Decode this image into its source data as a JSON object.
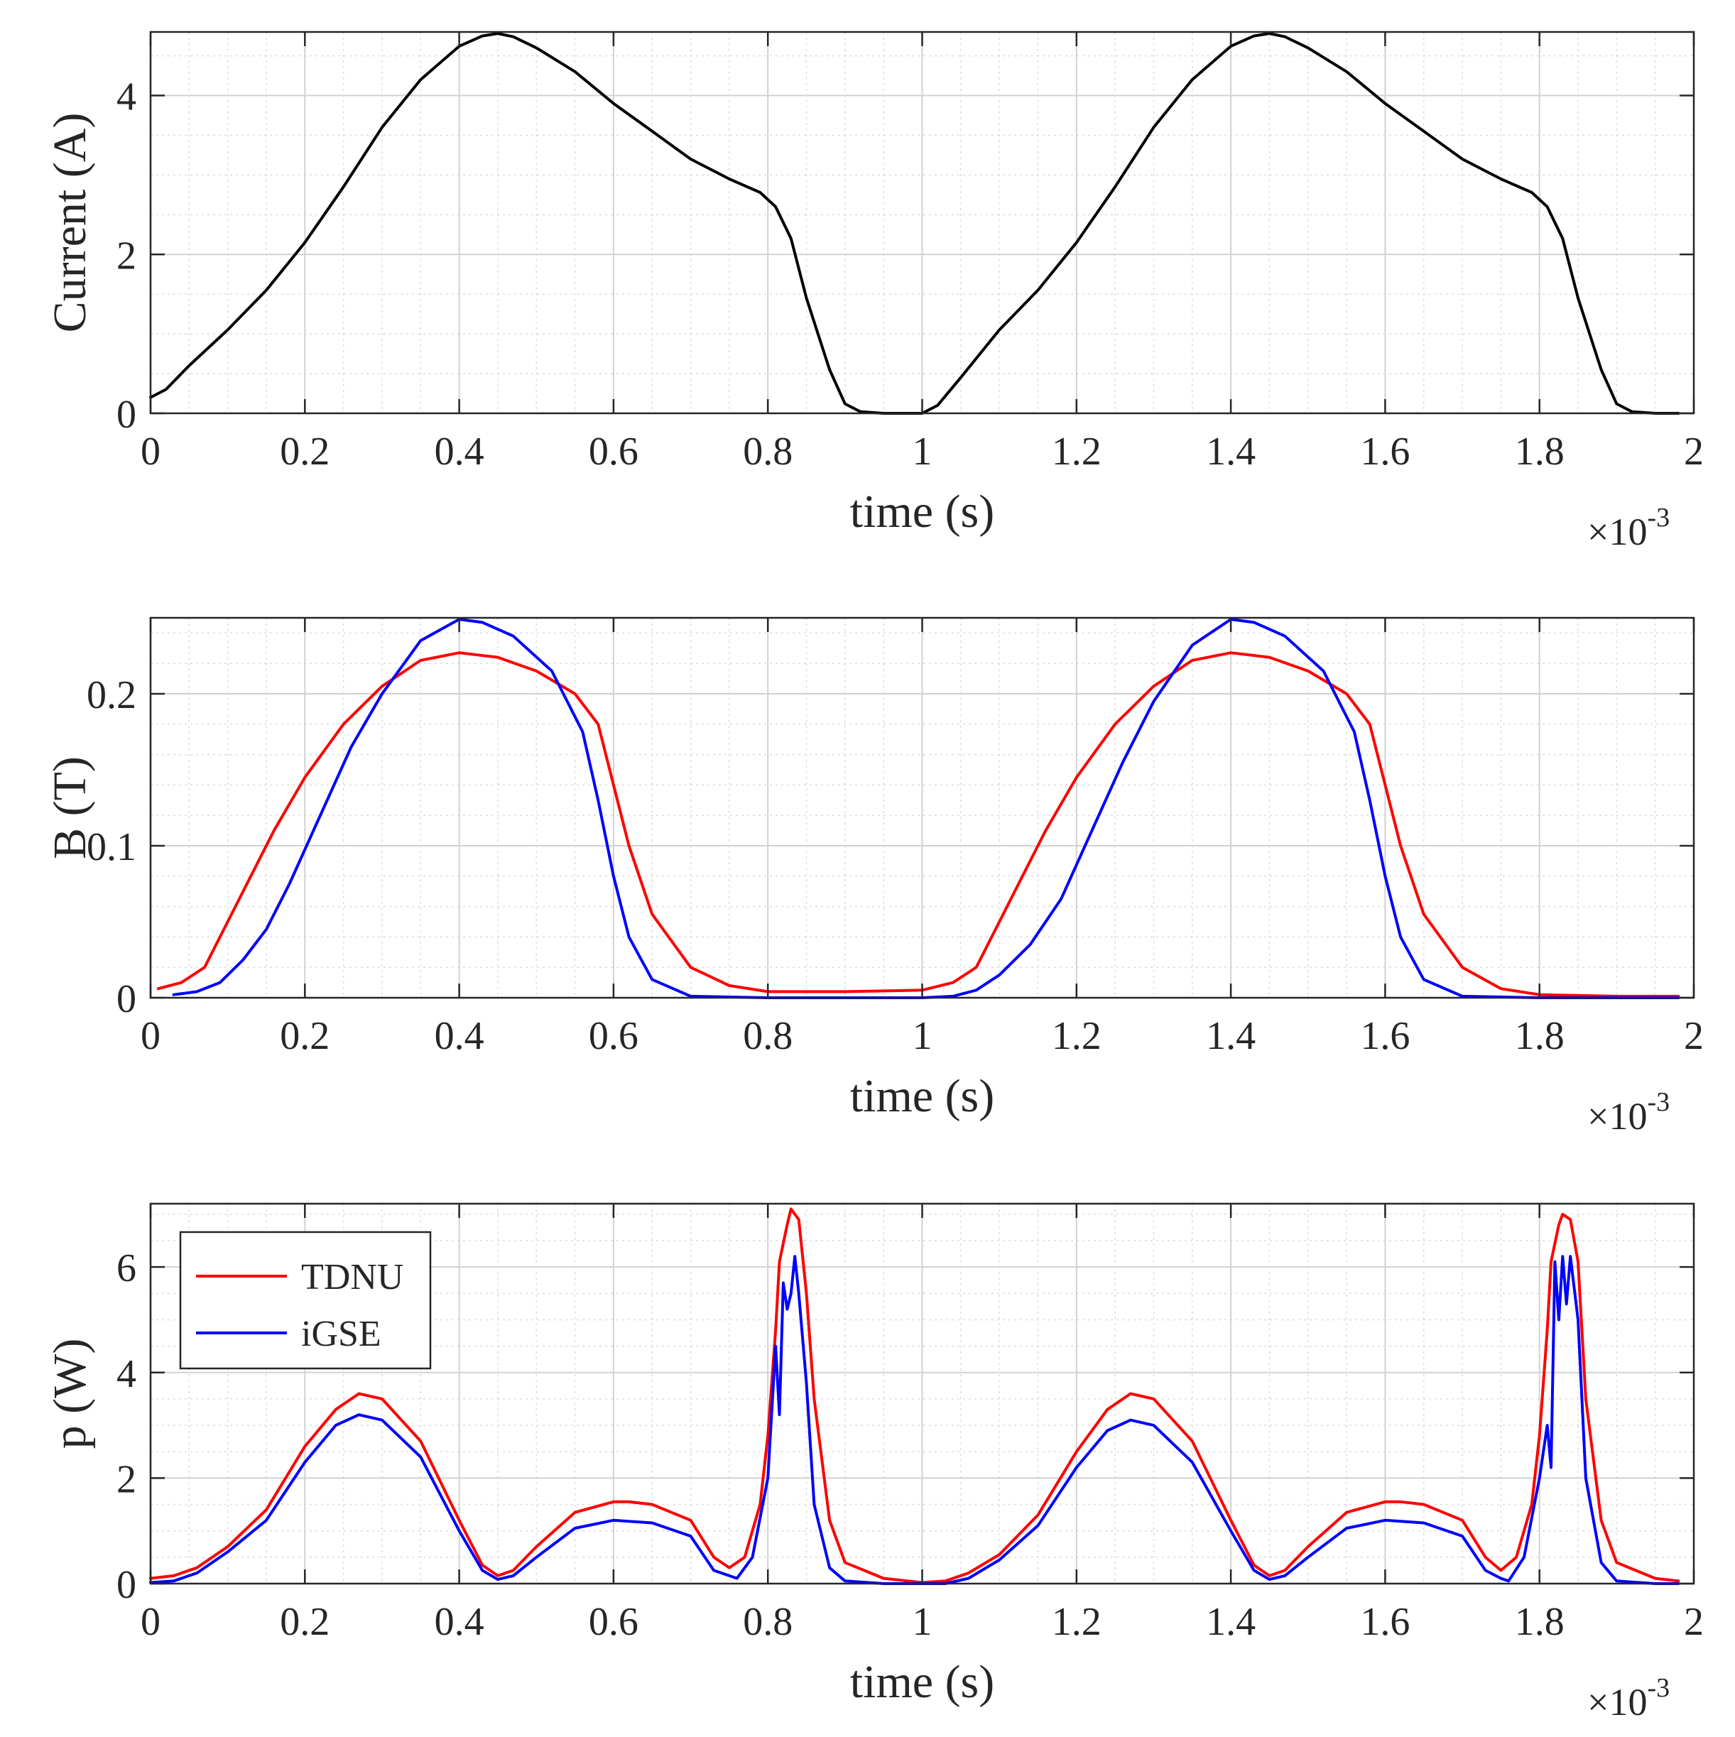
{
  "chart_data": [
    {
      "type": "line",
      "ylabel": "Current (A)",
      "xlabel": "time (s)",
      "x_exponent_label": "×10-3",
      "xlim": [
        0,
        2
      ],
      "ylim": [
        0,
        4.8
      ],
      "xticks": [
        0,
        0.2,
        0.4,
        0.6,
        0.8,
        1,
        1.2,
        1.4,
        1.6,
        1.8,
        2
      ],
      "xtick_labels": [
        "0",
        "0.2",
        "0.4",
        "0.6",
        "0.8",
        "1",
        "1.2",
        "1.4",
        "1.6",
        "1.8",
        "2"
      ],
      "yticks": [
        0,
        2,
        4
      ],
      "ytick_labels": [
        "0",
        "2",
        "4"
      ],
      "grid": true,
      "series": [
        {
          "name": "Current",
          "color": "#000000",
          "x": [
            0,
            0.02,
            0.05,
            0.1,
            0.15,
            0.2,
            0.25,
            0.3,
            0.35,
            0.4,
            0.43,
            0.45,
            0.47,
            0.5,
            0.55,
            0.6,
            0.65,
            0.7,
            0.75,
            0.79,
            0.81,
            0.83,
            0.85,
            0.88,
            0.9,
            0.92,
            0.95,
            0.98,
            1.0,
            1.02,
            1.05,
            1.1,
            1.15,
            1.2,
            1.25,
            1.3,
            1.35,
            1.4,
            1.43,
            1.45,
            1.47,
            1.5,
            1.55,
            1.6,
            1.65,
            1.7,
            1.75,
            1.79,
            1.81,
            1.83,
            1.85,
            1.88,
            1.9,
            1.92,
            1.95,
            1.98
          ],
          "y": [
            0.2,
            0.3,
            0.6,
            1.05,
            1.55,
            2.15,
            2.85,
            3.6,
            4.2,
            4.62,
            4.75,
            4.78,
            4.74,
            4.6,
            4.3,
            3.9,
            3.55,
            3.2,
            2.95,
            2.78,
            2.6,
            2.2,
            1.45,
            0.55,
            0.12,
            0.02,
            0,
            0,
            0,
            0.1,
            0.45,
            1.05,
            1.55,
            2.15,
            2.85,
            3.6,
            4.2,
            4.62,
            4.75,
            4.78,
            4.74,
            4.6,
            4.3,
            3.9,
            3.55,
            3.2,
            2.95,
            2.78,
            2.6,
            2.2,
            1.45,
            0.55,
            0.12,
            0.02,
            0,
            0
          ]
        }
      ]
    },
    {
      "type": "line",
      "ylabel": "B (T)",
      "xlabel": "time (s)",
      "x_exponent_label": "×10-3",
      "xlim": [
        0,
        2
      ],
      "ylim": [
        0,
        0.25
      ],
      "xticks": [
        0,
        0.2,
        0.4,
        0.6,
        0.8,
        1,
        1.2,
        1.4,
        1.6,
        1.8,
        2
      ],
      "xtick_labels": [
        "0",
        "0.2",
        "0.4",
        "0.6",
        "0.8",
        "1",
        "1.2",
        "1.4",
        "1.6",
        "1.8",
        "2"
      ],
      "yticks": [
        0,
        0.1,
        0.2
      ],
      "ytick_labels": [
        "0",
        "0.1",
        "0.2"
      ],
      "grid": true,
      "series": [
        {
          "name": "TDNU",
          "color": "#ff0000",
          "x": [
            0.01,
            0.04,
            0.07,
            0.1,
            0.13,
            0.16,
            0.2,
            0.25,
            0.3,
            0.35,
            0.4,
            0.45,
            0.5,
            0.55,
            0.58,
            0.6,
            0.62,
            0.65,
            0.7,
            0.75,
            0.8,
            0.9,
            1.0,
            1.04,
            1.07,
            1.1,
            1.13,
            1.16,
            1.2,
            1.25,
            1.3,
            1.35,
            1.4,
            1.45,
            1.5,
            1.55,
            1.58,
            1.6,
            1.62,
            1.65,
            1.7,
            1.75,
            1.8,
            1.9,
            1.98
          ],
          "y": [
            0.006,
            0.01,
            0.02,
            0.05,
            0.08,
            0.11,
            0.145,
            0.18,
            0.205,
            0.222,
            0.227,
            0.224,
            0.215,
            0.2,
            0.18,
            0.14,
            0.1,
            0.055,
            0.02,
            0.008,
            0.004,
            0.004,
            0.005,
            0.01,
            0.02,
            0.05,
            0.08,
            0.11,
            0.145,
            0.18,
            0.205,
            0.222,
            0.227,
            0.224,
            0.215,
            0.2,
            0.18,
            0.14,
            0.1,
            0.055,
            0.02,
            0.006,
            0.002,
            0.001,
            0.001
          ]
        },
        {
          "name": "iGSE",
          "color": "#0000ff",
          "x": [
            0.03,
            0.06,
            0.09,
            0.12,
            0.15,
            0.18,
            0.22,
            0.26,
            0.3,
            0.35,
            0.4,
            0.43,
            0.47,
            0.52,
            0.56,
            0.58,
            0.6,
            0.62,
            0.65,
            0.7,
            0.8,
            0.9,
            1.0,
            1.04,
            1.07,
            1.1,
            1.14,
            1.18,
            1.22,
            1.26,
            1.3,
            1.35,
            1.4,
            1.43,
            1.47,
            1.52,
            1.56,
            1.58,
            1.6,
            1.62,
            1.65,
            1.7,
            1.8,
            1.9,
            1.98
          ],
          "y": [
            0.002,
            0.004,
            0.01,
            0.025,
            0.045,
            0.075,
            0.12,
            0.165,
            0.2,
            0.235,
            0.249,
            0.247,
            0.238,
            0.215,
            0.175,
            0.13,
            0.08,
            0.04,
            0.012,
            0.001,
            0,
            0,
            0,
            0.001,
            0.005,
            0.015,
            0.035,
            0.065,
            0.11,
            0.155,
            0.195,
            0.232,
            0.249,
            0.247,
            0.238,
            0.215,
            0.175,
            0.13,
            0.08,
            0.04,
            0.012,
            0.001,
            0,
            0,
            0
          ]
        }
      ]
    },
    {
      "type": "line",
      "ylabel": "p (W)",
      "xlabel": "time (s)",
      "x_exponent_label": "×10-3",
      "xlim": [
        0,
        2
      ],
      "ylim": [
        0,
        7.2
      ],
      "xticks": [
        0,
        0.2,
        0.4,
        0.6,
        0.8,
        1,
        1.2,
        1.4,
        1.6,
        1.8,
        2
      ],
      "xtick_labels": [
        "0",
        "0.2",
        "0.4",
        "0.6",
        "0.8",
        "1",
        "1.2",
        "1.4",
        "1.6",
        "1.8",
        "2"
      ],
      "yticks": [
        0,
        2,
        4,
        6
      ],
      "ytick_labels": [
        "0",
        "2",
        "4",
        "6"
      ],
      "grid": true,
      "legend": {
        "position": "top-left",
        "entries": [
          "TDNU",
          "iGSE"
        ]
      },
      "series": [
        {
          "name": "TDNU",
          "color": "#ff0000",
          "x": [
            0,
            0.03,
            0.06,
            0.1,
            0.15,
            0.2,
            0.24,
            0.27,
            0.3,
            0.35,
            0.4,
            0.43,
            0.45,
            0.47,
            0.5,
            0.55,
            0.6,
            0.62,
            0.65,
            0.7,
            0.73,
            0.75,
            0.77,
            0.79,
            0.8,
            0.81,
            0.815,
            0.825,
            0.83,
            0.84,
            0.85,
            0.86,
            0.88,
            0.9,
            0.95,
            1.0,
            1.03,
            1.06,
            1.1,
            1.15,
            1.2,
            1.24,
            1.27,
            1.3,
            1.35,
            1.4,
            1.43,
            1.45,
            1.47,
            1.5,
            1.55,
            1.6,
            1.62,
            1.65,
            1.7,
            1.73,
            1.75,
            1.77,
            1.79,
            1.8,
            1.81,
            1.815,
            1.825,
            1.83,
            1.84,
            1.85,
            1.86,
            1.88,
            1.9,
            1.95,
            1.98
          ],
          "y": [
            0.1,
            0.15,
            0.3,
            0.7,
            1.4,
            2.6,
            3.3,
            3.6,
            3.5,
            2.7,
            1.2,
            0.35,
            0.15,
            0.25,
            0.7,
            1.35,
            1.55,
            1.55,
            1.5,
            1.2,
            0.5,
            0.3,
            0.5,
            1.5,
            2.8,
            4.8,
            6.1,
            6.8,
            7.1,
            6.9,
            5.5,
            3.5,
            1.2,
            0.4,
            0.1,
            0.02,
            0.05,
            0.2,
            0.55,
            1.3,
            2.5,
            3.3,
            3.6,
            3.5,
            2.7,
            1.2,
            0.35,
            0.15,
            0.25,
            0.7,
            1.35,
            1.55,
            1.55,
            1.5,
            1.2,
            0.5,
            0.25,
            0.5,
            1.5,
            2.8,
            4.8,
            6.1,
            6.8,
            7.0,
            6.9,
            6.1,
            3.5,
            1.2,
            0.4,
            0.1,
            0.05
          ]
        },
        {
          "name": "iGSE",
          "color": "#0000ff",
          "x": [
            0,
            0.03,
            0.06,
            0.1,
            0.15,
            0.2,
            0.24,
            0.27,
            0.3,
            0.35,
            0.4,
            0.43,
            0.45,
            0.47,
            0.5,
            0.55,
            0.6,
            0.65,
            0.7,
            0.73,
            0.75,
            0.76,
            0.78,
            0.8,
            0.81,
            0.815,
            0.82,
            0.825,
            0.83,
            0.835,
            0.84,
            0.85,
            0.86,
            0.88,
            0.9,
            0.95,
            1.0,
            1.03,
            1.06,
            1.1,
            1.15,
            1.2,
            1.24,
            1.27,
            1.3,
            1.35,
            1.4,
            1.43,
            1.45,
            1.47,
            1.5,
            1.55,
            1.6,
            1.65,
            1.7,
            1.73,
            1.75,
            1.76,
            1.78,
            1.8,
            1.81,
            1.815,
            1.82,
            1.825,
            1.83,
            1.835,
            1.84,
            1.85,
            1.86,
            1.88,
            1.9,
            1.95,
            1.98
          ],
          "y": [
            0.02,
            0.05,
            0.2,
            0.6,
            1.2,
            2.3,
            3.0,
            3.2,
            3.1,
            2.4,
            1.0,
            0.25,
            0.08,
            0.15,
            0.5,
            1.05,
            1.2,
            1.15,
            0.9,
            0.25,
            0.15,
            0.1,
            0.5,
            2.0,
            4.5,
            3.2,
            5.7,
            5.2,
            5.5,
            6.2,
            5.5,
            3.8,
            1.5,
            0.3,
            0.05,
            0,
            0,
            0,
            0.1,
            0.45,
            1.1,
            2.2,
            2.9,
            3.1,
            3.0,
            2.3,
            1.0,
            0.25,
            0.08,
            0.15,
            0.5,
            1.05,
            1.2,
            1.15,
            0.9,
            0.25,
            0.1,
            0.05,
            0.5,
            2.0,
            3.0,
            2.2,
            6.1,
            5.0,
            6.2,
            5.3,
            6.2,
            5.0,
            2.0,
            0.4,
            0.05,
            0,
            0
          ]
        }
      ]
    }
  ]
}
